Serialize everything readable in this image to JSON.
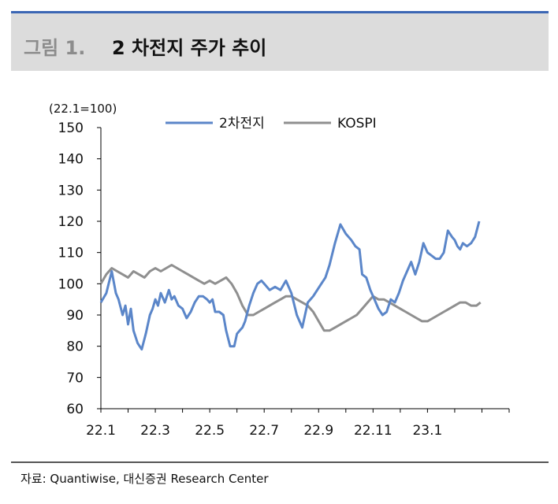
{
  "header": {
    "fig_num": "그림 1.",
    "title": "2 차전지 주가 추이"
  },
  "source": "자료: Quantiwise, 대신증권 Research Center",
  "colors": {
    "battery": "#5b86c9",
    "kospi": "#8f8f8f",
    "header_bar": "#3b66b4",
    "header_bg": "#dcdcdc"
  },
  "chart_data": {
    "type": "line",
    "unit_label": "(22.1=100)",
    "ylim": [
      60,
      150
    ],
    "yticks": [
      60,
      70,
      80,
      90,
      100,
      110,
      120,
      130,
      140,
      150
    ],
    "xlim": [
      0,
      15
    ],
    "xtick_labels": [
      "22.1",
      "22.3",
      "22.5",
      "22.7",
      "22.9",
      "22.11",
      "23.1"
    ],
    "xtick_positions": [
      0,
      2,
      4,
      6,
      8,
      10,
      12
    ],
    "legend_position": "top",
    "grid": false,
    "series": [
      {
        "name": "2차전지",
        "x": [
          0,
          0.2,
          0.4,
          0.55,
          0.65,
          0.8,
          0.9,
          1.0,
          1.1,
          1.2,
          1.35,
          1.5,
          1.65,
          1.8,
          1.9,
          2.0,
          2.1,
          2.2,
          2.35,
          2.5,
          2.6,
          2.7,
          2.85,
          3.0,
          3.15,
          3.3,
          3.45,
          3.6,
          3.75,
          3.9,
          4.0,
          4.1,
          4.2,
          4.35,
          4.5,
          4.6,
          4.75,
          4.9,
          5.0,
          5.1,
          5.2,
          5.3,
          5.45,
          5.6,
          5.75,
          5.9,
          6.0,
          6.2,
          6.4,
          6.6,
          6.8,
          7.0,
          7.2,
          7.4,
          7.6,
          7.8,
          7.95,
          8.1,
          8.25,
          8.4,
          8.6,
          8.8,
          9.0,
          9.2,
          9.35,
          9.5,
          9.6,
          9.75,
          9.9,
          10.05,
          10.2,
          10.35,
          10.5,
          10.65,
          10.8,
          10.95,
          11.1,
          11.25,
          11.4,
          11.55,
          11.7,
          11.85,
          12.0,
          12.15,
          12.3,
          12.45,
          12.6,
          12.75,
          12.9,
          13.0,
          13.1,
          13.2,
          13.3,
          13.45,
          13.6,
          13.75,
          13.9
        ],
        "values": [
          94,
          97,
          104,
          97,
          95,
          90,
          93,
          87,
          92,
          85,
          81,
          79,
          84,
          90,
          92,
          95,
          93,
          97,
          94,
          98,
          95,
          96,
          93,
          92,
          89,
          91,
          94,
          96,
          96,
          95,
          94,
          95,
          91,
          91,
          90,
          85,
          80,
          80,
          84,
          85,
          86,
          88,
          93,
          97,
          100,
          101,
          100,
          98,
          99,
          98,
          101,
          97,
          90,
          86,
          94,
          96,
          98,
          100,
          102,
          106,
          113,
          119,
          116,
          114,
          112,
          111,
          103,
          102,
          98,
          95,
          92,
          90,
          91,
          95,
          94,
          97,
          101,
          104,
          107,
          103,
          107,
          113,
          110,
          109,
          108,
          108,
          110,
          117,
          115,
          114,
          112,
          111,
          113,
          112,
          113,
          115,
          120
        ]
      },
      {
        "name": "KOSPI",
        "x": [
          0,
          0.2,
          0.4,
          0.6,
          0.8,
          1.0,
          1.2,
          1.4,
          1.6,
          1.8,
          2.0,
          2.2,
          2.4,
          2.6,
          2.8,
          3.0,
          3.2,
          3.4,
          3.6,
          3.8,
          4.0,
          4.2,
          4.4,
          4.6,
          4.8,
          5.0,
          5.2,
          5.4,
          5.6,
          5.8,
          6.0,
          6.2,
          6.4,
          6.6,
          6.8,
          7.0,
          7.2,
          7.4,
          7.6,
          7.8,
          8.0,
          8.2,
          8.4,
          8.6,
          8.8,
          9.0,
          9.2,
          9.4,
          9.6,
          9.8,
          10.0,
          10.2,
          10.4,
          10.6,
          10.8,
          11.0,
          11.2,
          11.4,
          11.6,
          11.8,
          12.0,
          12.2,
          12.4,
          12.6,
          12.8,
          13.0,
          13.2,
          13.4,
          13.6,
          13.8,
          13.95
        ],
        "values": [
          100,
          103,
          105,
          104,
          103,
          102,
          104,
          103,
          102,
          104,
          105,
          104,
          105,
          106,
          105,
          104,
          103,
          102,
          101,
          100,
          101,
          100,
          101,
          102,
          100,
          97,
          93,
          90,
          90,
          91,
          92,
          93,
          94,
          95,
          96,
          96,
          95,
          94,
          93,
          91,
          88,
          85,
          85,
          86,
          87,
          88,
          89,
          90,
          92,
          94,
          96,
          95,
          95,
          94,
          93,
          92,
          91,
          90,
          89,
          88,
          88,
          89,
          90,
          91,
          92,
          93,
          94,
          94,
          93,
          93,
          94
        ]
      }
    ]
  }
}
